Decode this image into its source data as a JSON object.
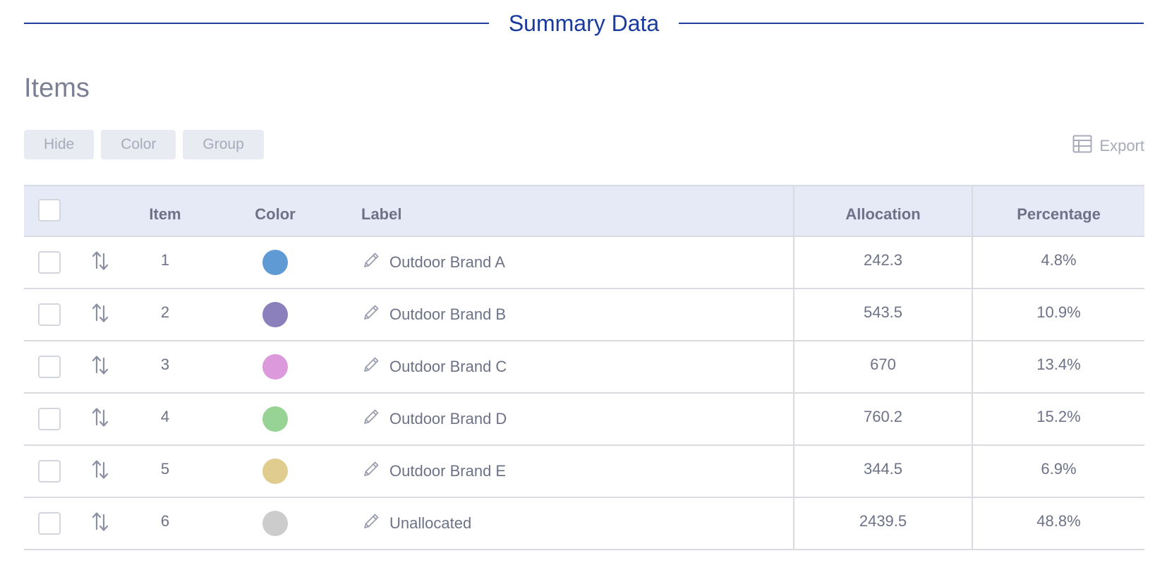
{
  "section": {
    "title": "Summary Data"
  },
  "items_heading": "Items",
  "toolbar": {
    "hide_label": "Hide",
    "color_label": "Color",
    "group_label": "Group",
    "export_label": "Export"
  },
  "table": {
    "headers": {
      "item": "Item",
      "color": "Color",
      "label": "Label",
      "allocation": "Allocation",
      "percentage": "Percentage"
    },
    "rows": [
      {
        "item": "1",
        "color": "#5f9ad5",
        "label": "Outdoor Brand A",
        "allocation": "242.3",
        "percentage": "4.8%"
      },
      {
        "item": "2",
        "color": "#8b80bb",
        "label": "Outdoor Brand B",
        "allocation": "543.5",
        "percentage": "10.9%"
      },
      {
        "item": "3",
        "color": "#dc99dc",
        "label": "Outdoor Brand C",
        "allocation": "670",
        "percentage": "13.4%"
      },
      {
        "item": "4",
        "color": "#96d395",
        "label": "Outdoor Brand D",
        "allocation": "760.2",
        "percentage": "15.2%"
      },
      {
        "item": "5",
        "color": "#dfcc8e",
        "label": "Outdoor Brand E",
        "allocation": "344.5",
        "percentage": "6.9%"
      },
      {
        "item": "6",
        "color": "#cccccc",
        "label": "Unallocated",
        "allocation": "2439.5",
        "percentage": "48.8%"
      }
    ]
  },
  "icons": {
    "sort": "sort-arrows-icon",
    "edit": "pencil-icon",
    "export": "table-icon"
  }
}
